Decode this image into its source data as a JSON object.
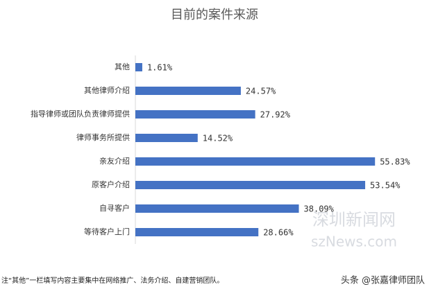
{
  "chart_data": {
    "type": "barh",
    "title": "目前的案件来源",
    "categories": [
      "其他",
      "其他律师介绍",
      "指导律师或团队负责律师提供",
      "律师事务所提供",
      "亲友介绍",
      "原客户介绍",
      "自寻客户",
      "等待客户上门"
    ],
    "values": [
      1.61,
      24.57,
      27.92,
      14.52,
      55.83,
      53.54,
      38.09,
      28.66
    ],
    "value_labels": [
      "1.61%",
      "24.57%",
      "27.92%",
      "14.52%",
      "55.83%",
      "53.54%",
      "38.09%",
      "28.66%"
    ],
    "color": "#4472c4",
    "xlim": [
      0,
      60
    ],
    "footnote": "注“其他”一栏填写内容主要集中在网络推广、法务介绍、自建营销团队。",
    "annotations": [
      "深圳新闻网",
      "szNews.com",
      "头条 @张嘉律师团队"
    ]
  }
}
